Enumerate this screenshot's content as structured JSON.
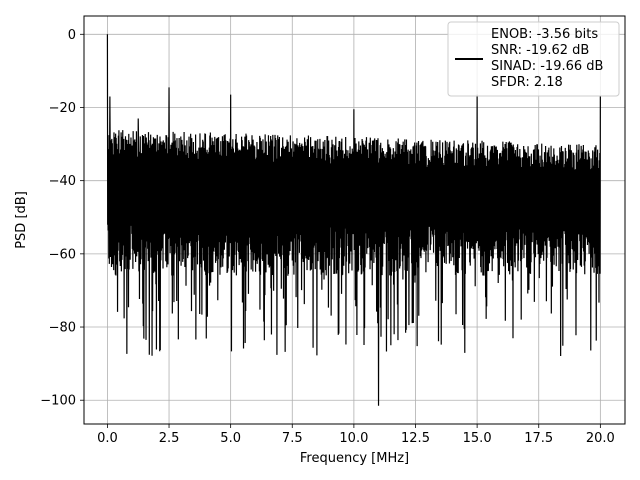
{
  "chart_data": {
    "type": "line",
    "title": "",
    "xlabel": "Frequency [MHz]",
    "ylabel": "PSD [dB]",
    "xlim": [
      -0.95,
      21.0
    ],
    "ylim": [
      -106.5,
      5.0
    ],
    "xticks": [
      0.0,
      2.5,
      5.0,
      7.5,
      10.0,
      12.5,
      15.0,
      17.5,
      20.0
    ],
    "xtick_labels": [
      "0.0",
      "2.5",
      "5.0",
      "7.5",
      "10.0",
      "12.5",
      "15.0",
      "17.5",
      "20.0"
    ],
    "yticks": [
      0,
      -20,
      -40,
      -60,
      -80,
      -100
    ],
    "ytick_labels": [
      "0",
      "−20",
      "−40",
      "−60",
      "−80",
      "−100"
    ],
    "grid": true,
    "legend_position": "top-right",
    "legend_entries": [
      "ENOB: -3.56 bits",
      "SNR: -19.62 dB",
      "SINAD: -19.66 dB",
      "SFDR: 2.18"
    ],
    "series": [
      {
        "color": "#000000",
        "x_range": [
          0.0,
          20.0
        ],
        "noise_ceiling_start": -26,
        "noise_ceiling_end": -30,
        "noise_floor": -66,
        "noise_dips_min": -88,
        "spikes": [
          {
            "x": 0.0,
            "y": 0.0
          },
          {
            "x": 0.1,
            "y": -17
          },
          {
            "x": 1.25,
            "y": -23
          },
          {
            "x": 2.5,
            "y": -14.5
          },
          {
            "x": 5.0,
            "y": -16.5
          },
          {
            "x": 10.0,
            "y": -20.5
          },
          {
            "x": 15.0,
            "y": -16.5
          },
          {
            "x": 20.0,
            "y": -17
          },
          {
            "x": 11.0,
            "y": -101.5
          }
        ]
      }
    ]
  }
}
